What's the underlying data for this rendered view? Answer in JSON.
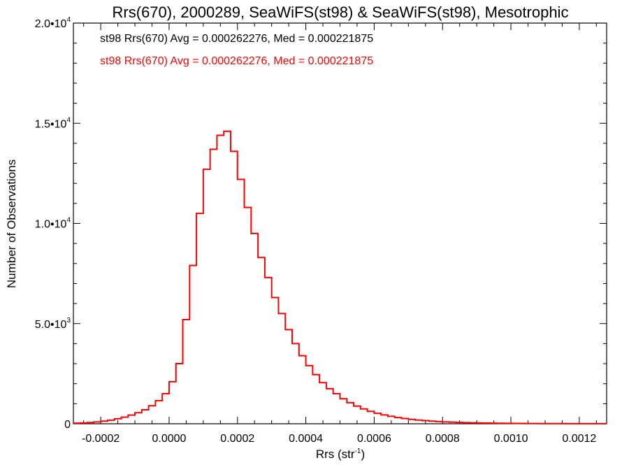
{
  "chart_data": {
    "type": "bar",
    "title": "Rrs(670), 2000289, SeaWiFS(st98) & SeaWiFS(st98), Mesotrophic",
    "xlabel": "Rrs (str",
    "xlabel_sup": "-1",
    "xlabel_close": ")",
    "ylabel": "Number of Observations",
    "xlim": [
      -0.00028,
      0.00128
    ],
    "ylim": [
      0,
      20000
    ],
    "x_ticks": [
      {
        "value": -0.0002,
        "label": "-0.0002"
      },
      {
        "value": 0.0,
        "label": "0.0000"
      },
      {
        "value": 0.0002,
        "label": "0.0002"
      },
      {
        "value": 0.0004,
        "label": "0.0004"
      },
      {
        "value": 0.0006,
        "label": "0.0006"
      },
      {
        "value": 0.0008,
        "label": "0.0008"
      },
      {
        "value": 0.001,
        "label": "0.0010"
      },
      {
        "value": 0.0012,
        "label": "0.0012"
      }
    ],
    "y_ticks": [
      {
        "value": 0,
        "mantissa": "0",
        "exp": ""
      },
      {
        "value": 5000,
        "mantissa": "5.0•10",
        "exp": "3"
      },
      {
        "value": 10000,
        "mantissa": "1.0•10",
        "exp": "4"
      },
      {
        "value": 15000,
        "mantissa": "1.5•10",
        "exp": "4"
      },
      {
        "value": 20000,
        "mantissa": "2.0•10",
        "exp": "4"
      }
    ],
    "annotations": [
      {
        "text": "st98 Rrs(670) Avg = 0.000262276, Med = 0.000221875",
        "color": "#000000"
      },
      {
        "text": "st98 Rrs(670) Avg = 0.000262276, Med = 0.000221875",
        "color": "#ff0000"
      }
    ],
    "series": [
      {
        "color": "#ff0000",
        "x": [
          -0.00028,
          -0.00026,
          -0.00024,
          -0.00022,
          -0.0002,
          -0.00018,
          -0.00016,
          -0.00014,
          -0.00012,
          -0.0001,
          -8e-05,
          -6e-05,
          -4e-05,
          -2e-05,
          0.0,
          2e-05,
          4e-05,
          6e-05,
          8e-05,
          0.0001,
          0.00012,
          0.00014,
          0.00016,
          0.00018,
          0.0002,
          0.00022,
          0.00024,
          0.00026,
          0.00028,
          0.0003,
          0.00032,
          0.00034,
          0.00036,
          0.00038,
          0.0004,
          0.00042,
          0.00044,
          0.00046,
          0.00048,
          0.0005,
          0.00052,
          0.00054,
          0.00056,
          0.00058,
          0.0006,
          0.00062,
          0.00064,
          0.00066,
          0.00068,
          0.0007,
          0.00072,
          0.00074,
          0.00076,
          0.00078,
          0.0008,
          0.00082,
          0.00084,
          0.00086,
          0.00088,
          0.0009,
          0.00092,
          0.00094,
          0.00096,
          0.00098,
          0.001,
          0.00102,
          0.00104,
          0.00106,
          0.00108,
          0.0011,
          0.00112,
          0.00114,
          0.00116,
          0.00118,
          0.0012,
          0.00122,
          0.00124,
          0.00126
        ],
        "values": [
          30,
          40,
          60,
          90,
          130,
          180,
          250,
          330,
          430,
          550,
          700,
          900,
          1150,
          1500,
          2100,
          3000,
          5200,
          7900,
          10500,
          12700,
          13700,
          14400,
          14600,
          13600,
          12200,
          10800,
          9500,
          8300,
          7300,
          6300,
          5500,
          4700,
          4000,
          3400,
          2900,
          2450,
          2050,
          1750,
          1500,
          1250,
          1050,
          880,
          740,
          620,
          520,
          440,
          370,
          310,
          260,
          220,
          185,
          155,
          130,
          110,
          92,
          78,
          66,
          56,
          48,
          41,
          35,
          30,
          26,
          22,
          19,
          16,
          14,
          12,
          10,
          9,
          8,
          7,
          6,
          5,
          5,
          4,
          4,
          3
        ]
      }
    ]
  }
}
